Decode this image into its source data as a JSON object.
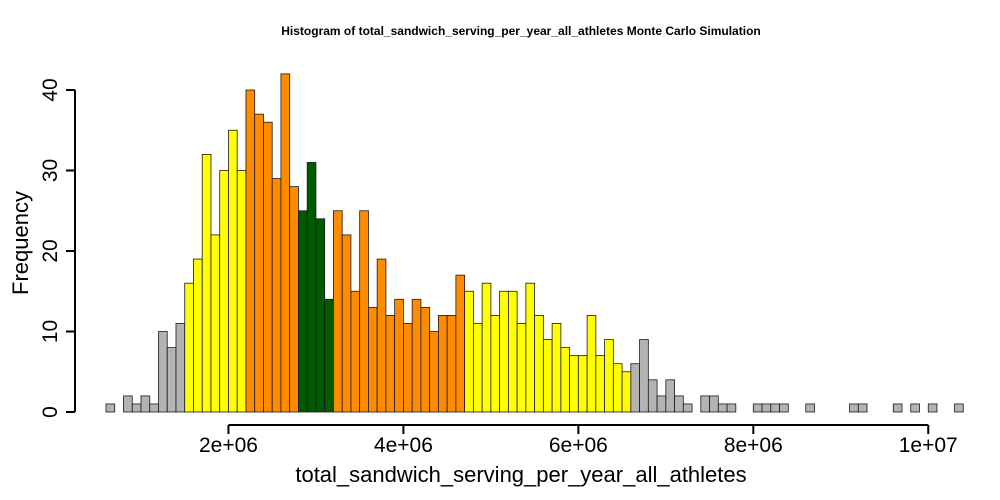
{
  "chart_data": {
    "type": "histogram",
    "title": "Histogram of  total_sandwich_serving_per_year_all_athletes  Monte Carlo Simulation",
    "xlabel": "total_sandwich_serving_per_year_all_athletes",
    "ylabel": "Frequency",
    "xlim": [
      600000,
      10100000
    ],
    "ylim": [
      0,
      42
    ],
    "bin_width": 100000,
    "bin_start": 600000,
    "x_ticks": [
      2000000,
      4000000,
      6000000,
      8000000,
      10000000
    ],
    "x_tick_labels": [
      "2e+06",
      "4e+06",
      "6e+06",
      "8e+06",
      "1e+07"
    ],
    "y_ticks": [
      0,
      10,
      20,
      30,
      40
    ],
    "y_tick_labels": [
      "0",
      "10",
      "20",
      "30",
      "40"
    ],
    "values": [
      1,
      0,
      2,
      1,
      2,
      1,
      10,
      8,
      11,
      16,
      19,
      32,
      22,
      30,
      35,
      30,
      40,
      37,
      36,
      29,
      42,
      28,
      25,
      31,
      24,
      14,
      25,
      22,
      15,
      25,
      13,
      19,
      12,
      14,
      11,
      14,
      13,
      10,
      12,
      12,
      17,
      15,
      11,
      16,
      12,
      15,
      15,
      11,
      16,
      12,
      9,
      11,
      8,
      7,
      7,
      12,
      7,
      9,
      6,
      5,
      6,
      9,
      4,
      2,
      4,
      2,
      1,
      0,
      2,
      2,
      1,
      1,
      0,
      0,
      1,
      1,
      1,
      1,
      0,
      0,
      1,
      0,
      0,
      0,
      0,
      1,
      1,
      0,
      0,
      0,
      1,
      0,
      1,
      0,
      1,
      0,
      0,
      1,
      0
    ],
    "bin_color_groups": [
      {
        "range": [
          0,
          8
        ],
        "color": "#b3b3b3"
      },
      {
        "range": [
          9,
          15
        ],
        "color": "#ffff00"
      },
      {
        "range": [
          16,
          21
        ],
        "color": "#ff8c00"
      },
      {
        "range": [
          22,
          25
        ],
        "color": "#005a00"
      },
      {
        "range": [
          26,
          40
        ],
        "color": "#ff8c00"
      },
      {
        "range": [
          41,
          59
        ],
        "color": "#ffff00"
      },
      {
        "range": [
          60,
          98
        ],
        "color": "#b3b3b3"
      }
    ]
  }
}
